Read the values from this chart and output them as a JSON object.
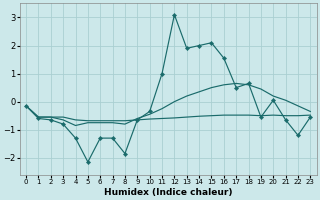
{
  "xlabel": "Humidex (Indice chaleur)",
  "bg_color": "#cce8ea",
  "grid_color": "#aacfd2",
  "line_color": "#1a6b6b",
  "x": [
    0,
    1,
    2,
    3,
    4,
    5,
    6,
    7,
    8,
    9,
    10,
    11,
    12,
    13,
    14,
    15,
    16,
    17,
    18,
    19,
    20,
    21,
    22,
    23
  ],
  "curve_jagged": [
    -0.15,
    -0.6,
    -0.65,
    -0.8,
    -1.3,
    -2.15,
    -1.3,
    -1.3,
    -1.85,
    -0.65,
    -0.35,
    1.0,
    3.1,
    1.9,
    2.0,
    2.1,
    1.55,
    0.5,
    0.65,
    -0.55,
    0.05,
    -0.65,
    -1.2,
    -0.55
  ],
  "curve_mid": [
    -0.15,
    -0.55,
    -0.55,
    -0.65,
    -0.85,
    -0.75,
    -0.75,
    -0.75,
    -0.8,
    -0.6,
    -0.45,
    -0.25,
    0.0,
    0.2,
    0.35,
    0.5,
    0.6,
    0.65,
    0.6,
    0.45,
    0.2,
    0.05,
    -0.15,
    -0.35
  ],
  "curve_low": [
    -0.15,
    -0.55,
    -0.55,
    -0.55,
    -0.65,
    -0.68,
    -0.68,
    -0.68,
    -0.68,
    -0.65,
    -0.62,
    -0.6,
    -0.58,
    -0.55,
    -0.52,
    -0.5,
    -0.48,
    -0.48,
    -0.48,
    -0.5,
    -0.48,
    -0.5,
    -0.5,
    -0.48
  ],
  "ylim": [
    -2.6,
    3.5
  ],
  "xlim": [
    -0.5,
    23.5
  ],
  "yticks": [
    -2,
    -1,
    0,
    1,
    2,
    3
  ],
  "xticks": [
    0,
    1,
    2,
    3,
    4,
    5,
    6,
    7,
    8,
    9,
    10,
    11,
    12,
    13,
    14,
    15,
    16,
    17,
    18,
    19,
    20,
    21,
    22,
    23
  ]
}
